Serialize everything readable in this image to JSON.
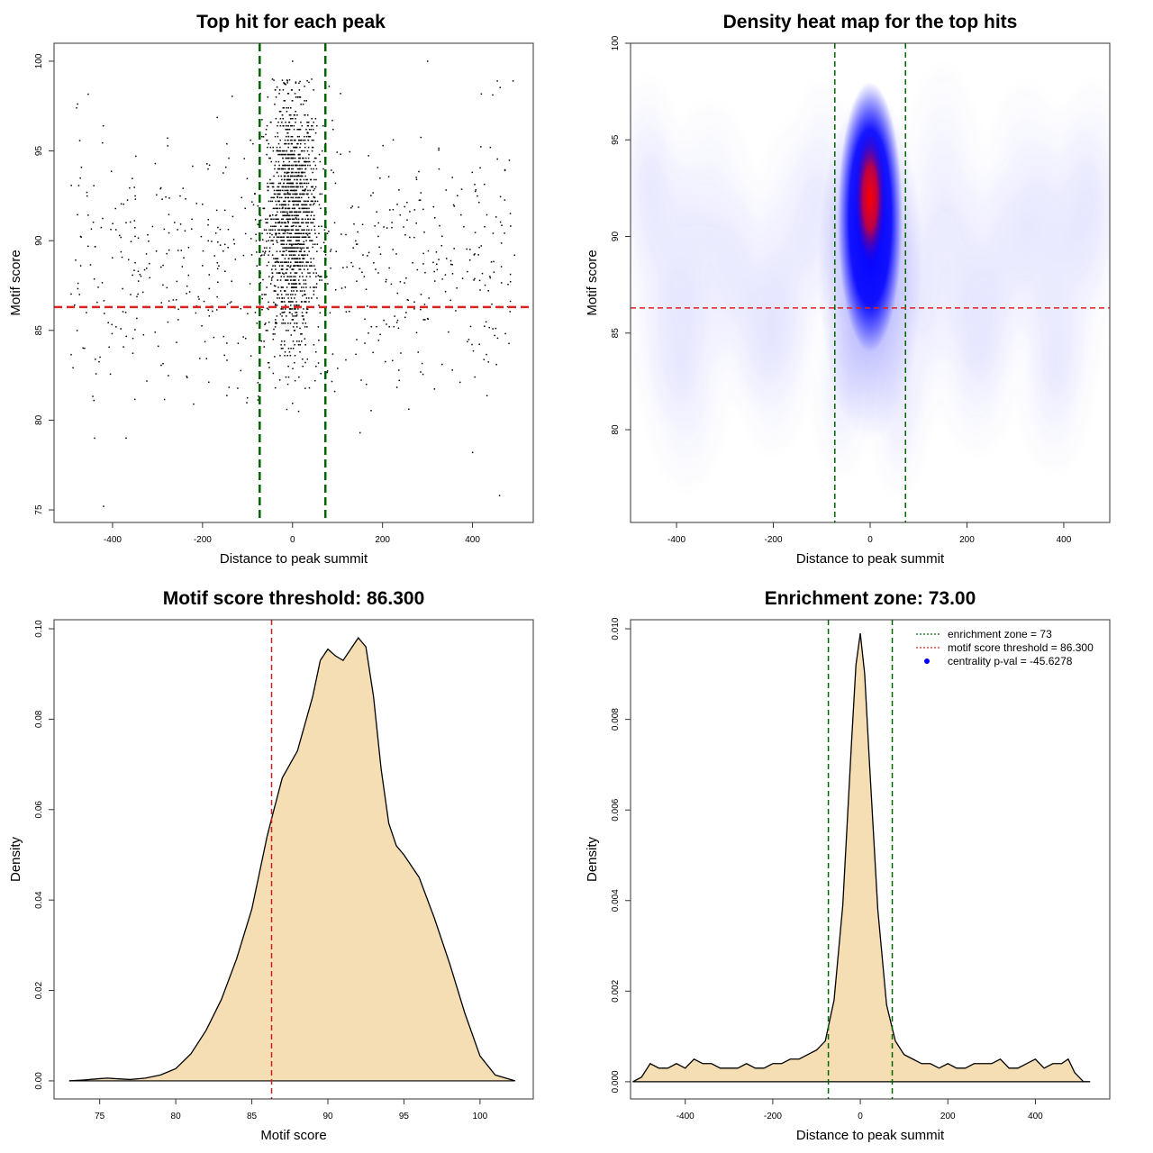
{
  "chart_data": [
    {
      "type": "scatter",
      "title": "Top hit for each peak",
      "xlabel": "Distance to peak summit",
      "ylabel": "Motif score",
      "xlim": [
        -530,
        535
      ],
      "ylim": [
        74.3,
        101
      ],
      "x_ticks": [
        -400,
        -200,
        0,
        200,
        400
      ],
      "x_tick_labels": [
        "-400",
        "-200",
        "0",
        "200",
        "400"
      ],
      "y_ticks": [
        75,
        80,
        85,
        90,
        95,
        100
      ],
      "y_tick_labels": [
        "75",
        "80",
        "85",
        "90",
        "95",
        "100"
      ],
      "threshold_h": 86.3,
      "threshold_color": "#dd2222",
      "zone_v": [
        -73,
        73
      ],
      "zone_color": "#006400",
      "point_color": "#000000",
      "central_sd": 28,
      "n_central": 1500,
      "n_background": 650,
      "sample_points": [
        {
          "x": -420,
          "y": 75.2
        },
        {
          "x": -440,
          "y": 79.0
        },
        {
          "x": -370,
          "y": 79.0
        },
        {
          "x": 460,
          "y": 75.8
        },
        {
          "x": 400,
          "y": 78.2
        },
        {
          "x": 150,
          "y": 79.3
        },
        {
          "x": -480,
          "y": 97.4
        },
        {
          "x": 455,
          "y": 98.9
        },
        {
          "x": 490,
          "y": 98.9
        },
        {
          "x": 0,
          "y": 100.0
        },
        {
          "x": 300,
          "y": 100.0
        }
      ]
    },
    {
      "type": "heatmap",
      "title": "Density heat map for the top hits",
      "xlabel": "Distance to peak summit",
      "ylabel": "Motif score",
      "xlim": [
        -495,
        495
      ],
      "ylim": [
        75.2,
        100
      ],
      "x_ticks": [
        -400,
        -200,
        0,
        200,
        400
      ],
      "x_tick_labels": [
        "-400",
        "-200",
        "0",
        "200",
        "400"
      ],
      "y_ticks": [
        80,
        85,
        90,
        95,
        100
      ],
      "y_tick_labels": [
        "80",
        "85",
        "90",
        "95",
        "100"
      ],
      "threshold_h": 86.3,
      "threshold_color": "#dd2222",
      "zone_v": [
        -73,
        73
      ],
      "zone_color": "#006400",
      "colors": [
        "#ffffff",
        "#0000ff",
        "#ff0000"
      ],
      "peak": {
        "x": 0,
        "y": 92
      }
    },
    {
      "type": "area",
      "title": "Motif score threshold: 86.300",
      "xlabel": "Motif score",
      "ylabel": "Density",
      "xlim": [
        72,
        103.5
      ],
      "ylim": [
        -0.004,
        0.102
      ],
      "x_ticks": [
        75,
        80,
        85,
        90,
        95,
        100
      ],
      "x_tick_labels": [
        "75",
        "80",
        "85",
        "90",
        "95",
        "100"
      ],
      "y_ticks": [
        0.0,
        0.02,
        0.04,
        0.06,
        0.08,
        0.1
      ],
      "y_tick_labels": [
        "0.00",
        "0.02",
        "0.04",
        "0.06",
        "0.08",
        "0.10"
      ],
      "fill_color": "#f5deb3",
      "threshold_v": 86.3,
      "threshold_color": "#cc2222",
      "x": [
        73,
        74,
        75,
        75.5,
        76,
        77,
        78,
        79,
        80,
        81,
        82,
        83,
        84,
        85,
        86,
        86.3,
        87,
        88,
        89,
        89.5,
        90,
        90.5,
        91,
        91.5,
        92,
        92.5,
        93,
        93.5,
        94,
        94.5,
        95,
        96,
        97,
        98,
        99,
        100,
        101,
        102,
        102.3
      ],
      "y": [
        0.0,
        0.0002,
        0.0005,
        0.0006,
        0.0005,
        0.0003,
        0.0006,
        0.0013,
        0.0027,
        0.006,
        0.0112,
        0.018,
        0.027,
        0.038,
        0.054,
        0.058,
        0.067,
        0.073,
        0.085,
        0.093,
        0.0955,
        0.094,
        0.093,
        0.0955,
        0.098,
        0.096,
        0.085,
        0.069,
        0.057,
        0.052,
        0.05,
        0.045,
        0.036,
        0.026,
        0.015,
        0.0055,
        0.0013,
        0.0003,
        0.0
      ]
    },
    {
      "type": "area",
      "title": "Enrichment zone: 73.00",
      "xlabel": "Distance to peak summit",
      "ylabel": "Density",
      "xlim": [
        -525,
        570
      ],
      "ylim": [
        -0.00038,
        0.0102
      ],
      "x_ticks": [
        -400,
        -200,
        0,
        200,
        400
      ],
      "x_tick_labels": [
        "-400",
        "-200",
        "0",
        "200",
        "400"
      ],
      "y_ticks": [
        0.0,
        0.002,
        0.004,
        0.006,
        0.008,
        0.01
      ],
      "y_tick_labels": [
        "0.000",
        "0.002",
        "0.004",
        "0.006",
        "0.008",
        "0.010"
      ],
      "fill_color": "#f5deb3",
      "zone_v": [
        -73,
        73
      ],
      "zone_color": "#006400",
      "x": [
        -520,
        -500,
        -480,
        -460,
        -440,
        -420,
        -400,
        -380,
        -360,
        -340,
        -320,
        -300,
        -280,
        -260,
        -240,
        -220,
        -200,
        -180,
        -160,
        -140,
        -120,
        -100,
        -80,
        -60,
        -40,
        -20,
        -10,
        0,
        10,
        20,
        40,
        60,
        80,
        100,
        120,
        140,
        160,
        180,
        200,
        220,
        240,
        260,
        280,
        300,
        320,
        340,
        360,
        380,
        400,
        420,
        440,
        460,
        475,
        490,
        510,
        525
      ],
      "y": [
        0.0,
        0.0001,
        0.0004,
        0.0003,
        0.0003,
        0.0004,
        0.0003,
        0.0005,
        0.0004,
        0.0004,
        0.0003,
        0.0003,
        0.0003,
        0.0004,
        0.0003,
        0.0003,
        0.0004,
        0.0004,
        0.0005,
        0.0005,
        0.0006,
        0.0007,
        0.0009,
        0.0018,
        0.0039,
        0.0075,
        0.0092,
        0.0099,
        0.009,
        0.0072,
        0.0038,
        0.0017,
        0.0009,
        0.0006,
        0.0005,
        0.0004,
        0.0004,
        0.0003,
        0.0004,
        0.0003,
        0.0003,
        0.0004,
        0.0004,
        0.0004,
        0.0005,
        0.0003,
        0.0003,
        0.0004,
        0.0005,
        0.0003,
        0.0004,
        0.0004,
        0.0005,
        0.0002,
        0.0,
        0.0
      ],
      "legend": {
        "placement": "top-right",
        "entries": [
          {
            "label": "enrichment zone = 73",
            "color": "#006400",
            "kind": "dotted-line"
          },
          {
            "label": "motif score threshold = 86.300",
            "color": "#dd2222",
            "kind": "dotted-line"
          },
          {
            "label": "centrality p-val = -45.6278",
            "color": "#0000ff",
            "kind": "point"
          }
        ]
      }
    }
  ]
}
